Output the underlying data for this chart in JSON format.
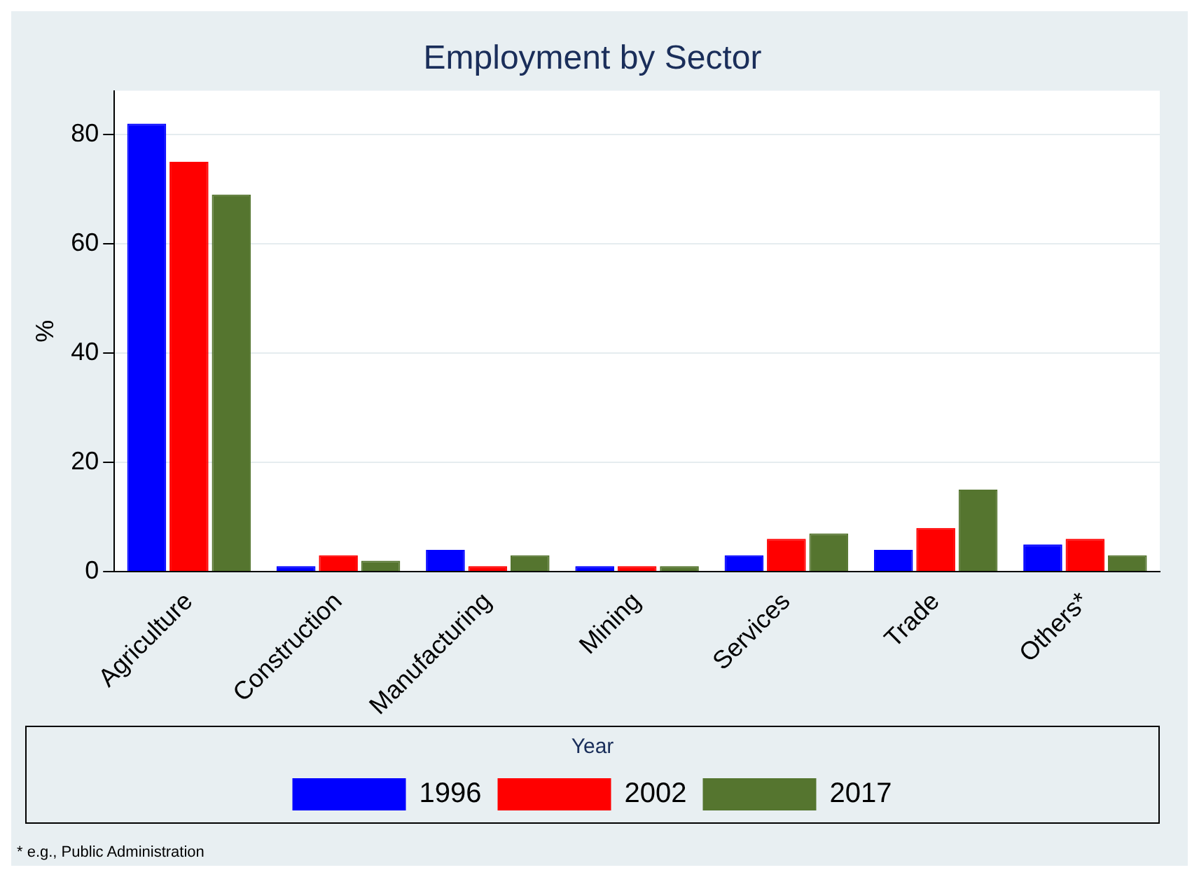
{
  "chart_data": {
    "type": "bar",
    "title": "Employment by Sector",
    "ylabel": "%",
    "legend_title": "Year",
    "categories": [
      "Agriculture",
      "Construction",
      "Manufacturing",
      "Mining",
      "Services",
      "Trade",
      "Others*"
    ],
    "series": [
      {
        "name": "1996",
        "color": "#0000ff",
        "values": [
          82,
          1,
          4,
          1,
          3,
          4,
          5
        ]
      },
      {
        "name": "2002",
        "color": "#ff0000",
        "values": [
          75,
          3,
          1,
          1,
          6,
          8,
          6
        ]
      },
      {
        "name": "2017",
        "color": "#55752f",
        "values": [
          69,
          2,
          3,
          1,
          7,
          15,
          3
        ]
      }
    ],
    "ylim": [
      0,
      88
    ],
    "yticks": [
      0,
      20,
      40,
      60,
      80
    ],
    "grid": "y",
    "legend": "bottom",
    "annotations": [
      "* e.g., Public Administration"
    ]
  }
}
